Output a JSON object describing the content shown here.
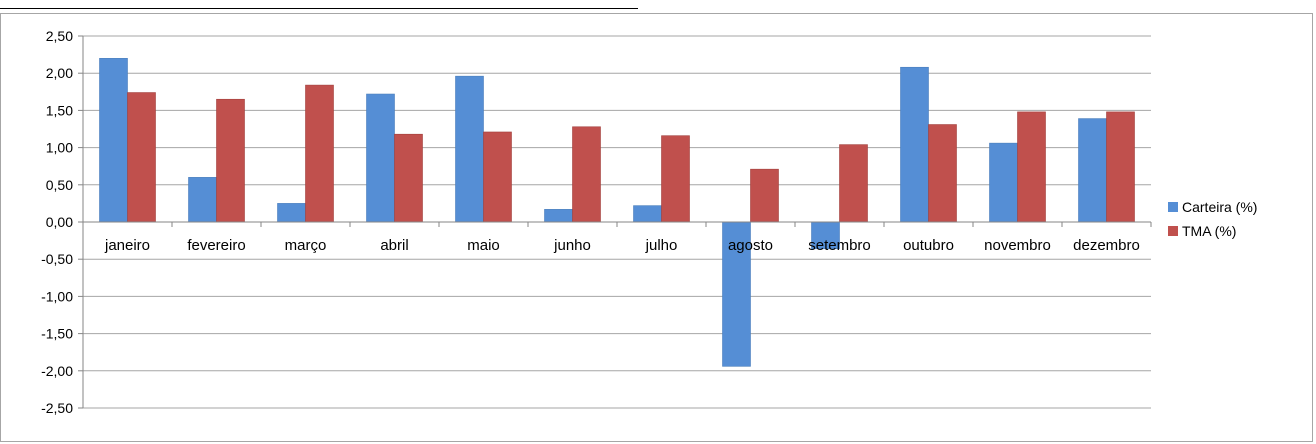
{
  "chart_data": {
    "type": "bar",
    "title": "",
    "xlabel": "",
    "ylabel": "",
    "ylim": [
      -2.5,
      2.5
    ],
    "yticks": [
      "2,50",
      "2,00",
      "1,50",
      "1,00",
      "0,50",
      "0,00",
      "-0,50",
      "-1,00",
      "-1,50",
      "-2,00",
      "-2,50"
    ],
    "ytick_values": [
      2.5,
      2.0,
      1.5,
      1.0,
      0.5,
      0.0,
      -0.5,
      -1.0,
      -1.5,
      -2.0,
      -2.5
    ],
    "grid": true,
    "legend_position": "right",
    "categories": [
      "janeiro",
      "fevereiro",
      "março",
      "abril",
      "maio",
      "junho",
      "julho",
      "agosto",
      "setembro",
      "outubro",
      "novembro",
      "dezembro"
    ],
    "series": [
      {
        "name": "Carteira (%)",
        "color": "#558ed5",
        "values": [
          2.2,
          0.6,
          0.25,
          1.72,
          1.96,
          0.17,
          0.22,
          -1.94,
          -0.36,
          2.08,
          1.06,
          1.39
        ]
      },
      {
        "name": "TMA (%)",
        "color": "#c0504d",
        "values": [
          1.74,
          1.65,
          1.84,
          1.18,
          1.21,
          1.28,
          1.16,
          0.71,
          1.04,
          1.31,
          1.48,
          1.48
        ]
      }
    ]
  }
}
